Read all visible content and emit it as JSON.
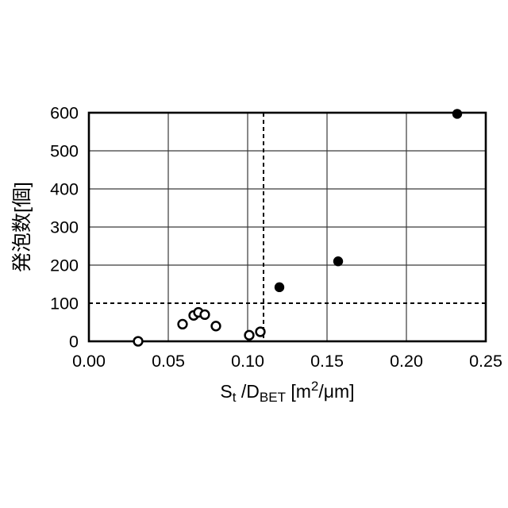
{
  "figure": {
    "background": "#ffffff",
    "foreground": "#000000",
    "grid_color": "#3a3a3a"
  },
  "chart_data": {
    "type": "scatter",
    "title": "",
    "ylabel": "発泡数[個]",
    "xlabel_plain": "St /DBET [m2/μm]",
    "xlabel_parts": [
      {
        "text": "S",
        "style": "normal"
      },
      {
        "text": "t",
        "style": "sub"
      },
      {
        "text": " /D",
        "style": "normal"
      },
      {
        "text": "BET",
        "style": "sub"
      },
      {
        "text": " [m",
        "style": "normal"
      },
      {
        "text": "2",
        "style": "sup"
      },
      {
        "text": "/μm]",
        "style": "normal"
      }
    ],
    "xlim": [
      0,
      0.25
    ],
    "ylim": [
      0,
      600
    ],
    "x_tick_values": [
      0,
      0.05,
      0.1,
      0.15,
      0.2,
      0.25
    ],
    "x_tick_labels": [
      "0.00",
      "0.05",
      "0.10",
      "0.15",
      "0.20",
      "0.25"
    ],
    "y_tick_values": [
      0,
      100,
      200,
      300,
      400,
      500,
      600
    ],
    "y_tick_labels": [
      "0",
      "100",
      "200",
      "300",
      "400",
      "500",
      "600"
    ],
    "grid": true,
    "legend": "none",
    "series": [
      {
        "name": "open-circles",
        "marker": "open-circle",
        "color": "#000000",
        "points": [
          [
            0.031,
            0
          ],
          [
            0.059,
            45
          ],
          [
            0.066,
            68
          ],
          [
            0.069,
            76
          ],
          [
            0.073,
            70
          ],
          [
            0.08,
            40
          ],
          [
            0.101,
            16
          ],
          [
            0.108,
            25
          ]
        ]
      },
      {
        "name": "filled-circles",
        "marker": "filled-circle",
        "color": "#000000",
        "points": [
          [
            0.12,
            142
          ],
          [
            0.157,
            210
          ],
          [
            0.232,
            597
          ]
        ]
      }
    ],
    "reference_lines": [
      {
        "axis": "y",
        "value": 100,
        "style": "dashed"
      },
      {
        "axis": "x",
        "value": 0.11,
        "style": "dashed"
      }
    ]
  }
}
